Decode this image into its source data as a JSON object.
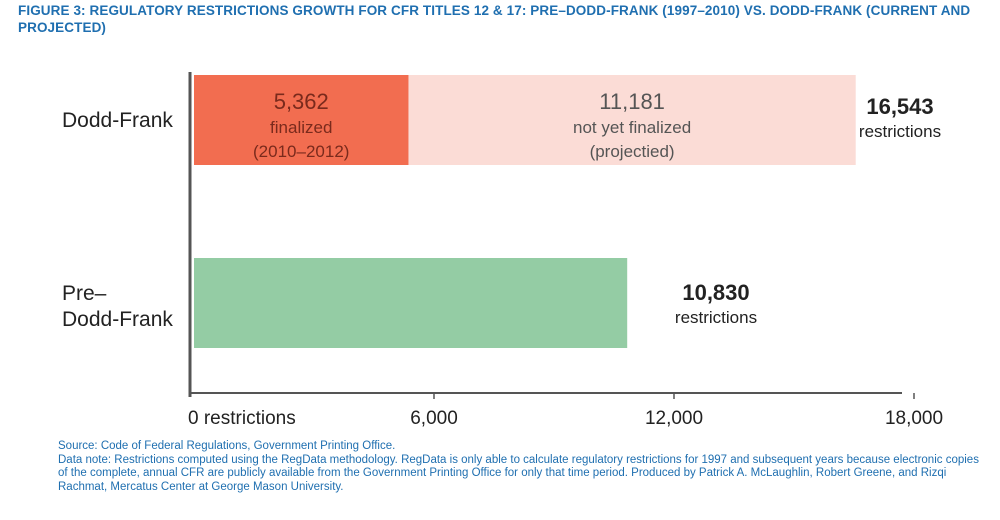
{
  "figure": {
    "title": "FIGURE 3: REGULATORY RESTRICTIONS GROWTH FOR CFR TITLES 12 & 17: PRE–DODD-FRANK (1997–2010) VS. DODD-FRANK (CURRENT AND PROJECTED)",
    "source": "Source: Code of Federal Regulations, Government Printing Office.",
    "note": "Data note: Restrictions computed using the RegData methodology. RegData is only able to calculate regulatory restrictions for 1997 and subsequent years because electronic copies of the complete, annual CFR are publicly available from the Government Printing Office for only that time period. Produced by Patrick A. McLaughlin, Robert Greene, and Rizqi Rachmat, Mercatus Center at George Mason University."
  },
  "chart_data": {
    "type": "bar",
    "orientation": "horizontal",
    "stacked": true,
    "categories": [
      "Dodd-Frank",
      "Pre–Dodd-Frank"
    ],
    "category_label_lines": [
      [
        "Dodd-Frank"
      ],
      [
        "Pre–",
        "Dodd-Frank"
      ]
    ],
    "segments": [
      {
        "category": "Dodd-Frank",
        "start": 0,
        "value": 5362,
        "color": "#f26d50",
        "label_lines": [
          "5,362",
          "finalized",
          "(2010–2012)"
        ]
      },
      {
        "category": "Dodd-Frank",
        "start": 5362,
        "value": 11181,
        "color": "#fbdcd6",
        "label_lines": [
          "11,181",
          "not yet finalized",
          "(projectied)"
        ]
      },
      {
        "category": "Pre–Dodd-Frank",
        "start": 0,
        "value": 10830,
        "color": "#94cca4",
        "label_lines": []
      }
    ],
    "totals": [
      {
        "category": "Dodd-Frank",
        "value": 16543,
        "value_label": "16,543",
        "unit": "restrictions"
      },
      {
        "category": "Pre–Dodd-Frank",
        "value": 10830,
        "value_label": "10,830",
        "unit": "restrictions"
      }
    ],
    "x_ticks": [
      {
        "value": 0,
        "label": "0  restrictions"
      },
      {
        "value": 6000,
        "label": "6,000"
      },
      {
        "value": 12000,
        "label": "12,000"
      },
      {
        "value": 18000,
        "label": "18,000"
      }
    ],
    "xlim": [
      0,
      18000
    ],
    "grid": false,
    "legend": "none",
    "colors": {
      "title": "#1f6fb0",
      "axis": "#555555",
      "label_dark": "#222222",
      "label_finalized": "#7a2a1c",
      "label_projected": "#555555"
    }
  }
}
